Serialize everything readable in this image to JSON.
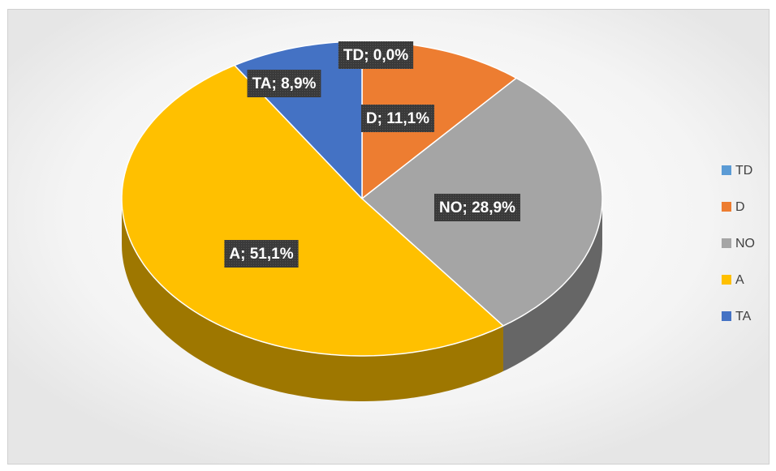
{
  "chart_data": {
    "type": "pie3d",
    "categories": [
      "TD",
      "D",
      "NO",
      "A",
      "TA"
    ],
    "values": [
      0,
      11.1,
      28.9,
      51.1,
      8.9
    ],
    "value_labels": [
      "TD; 0,0%",
      "D; 11,1%",
      "NO; 28,9%",
      "A; 51,1%",
      "TA; 8,9%"
    ],
    "colors": [
      "#5b9bd5",
      "#ed7d31",
      "#a5a5a5",
      "#ffc000",
      "#4472c4"
    ],
    "legend": "right"
  }
}
